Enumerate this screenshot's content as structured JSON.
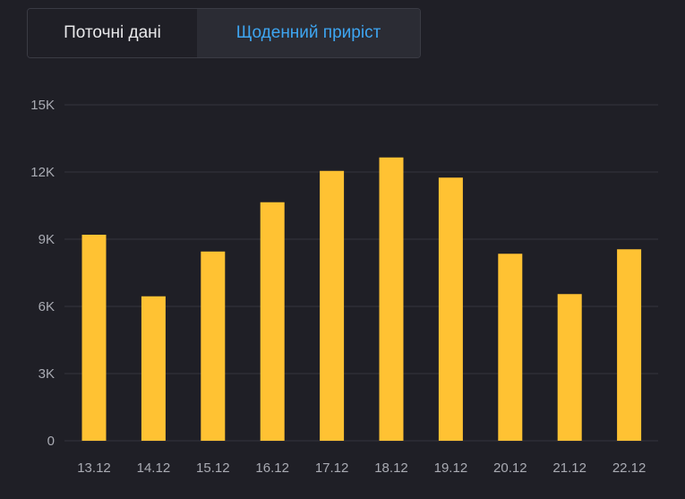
{
  "tabs": {
    "current_label": "Поточні дані",
    "daily_label": "Щоденний приріст",
    "active": "daily"
  },
  "colors": {
    "background": "#1f1f26",
    "bar": "#ffc233",
    "grid": "#34353e",
    "tick_text": "#a9abb3",
    "active_tab_text": "#3ea6f2"
  },
  "chart_data": {
    "type": "bar",
    "categories": [
      "13.12",
      "14.12",
      "15.12",
      "16.12",
      "17.12",
      "18.12",
      "19.12",
      "20.12",
      "21.12",
      "22.12"
    ],
    "values": [
      9200,
      6450,
      8450,
      10650,
      12050,
      12650,
      11750,
      8350,
      6550,
      8550
    ],
    "ylim": [
      0,
      15000
    ],
    "yticks": [
      0,
      3000,
      6000,
      9000,
      12000,
      15000
    ],
    "ytick_labels": [
      "0",
      "3K",
      "6K",
      "9K",
      "12K",
      "15K"
    ],
    "grid": true,
    "title": "",
    "xlabel": "",
    "ylabel": ""
  }
}
